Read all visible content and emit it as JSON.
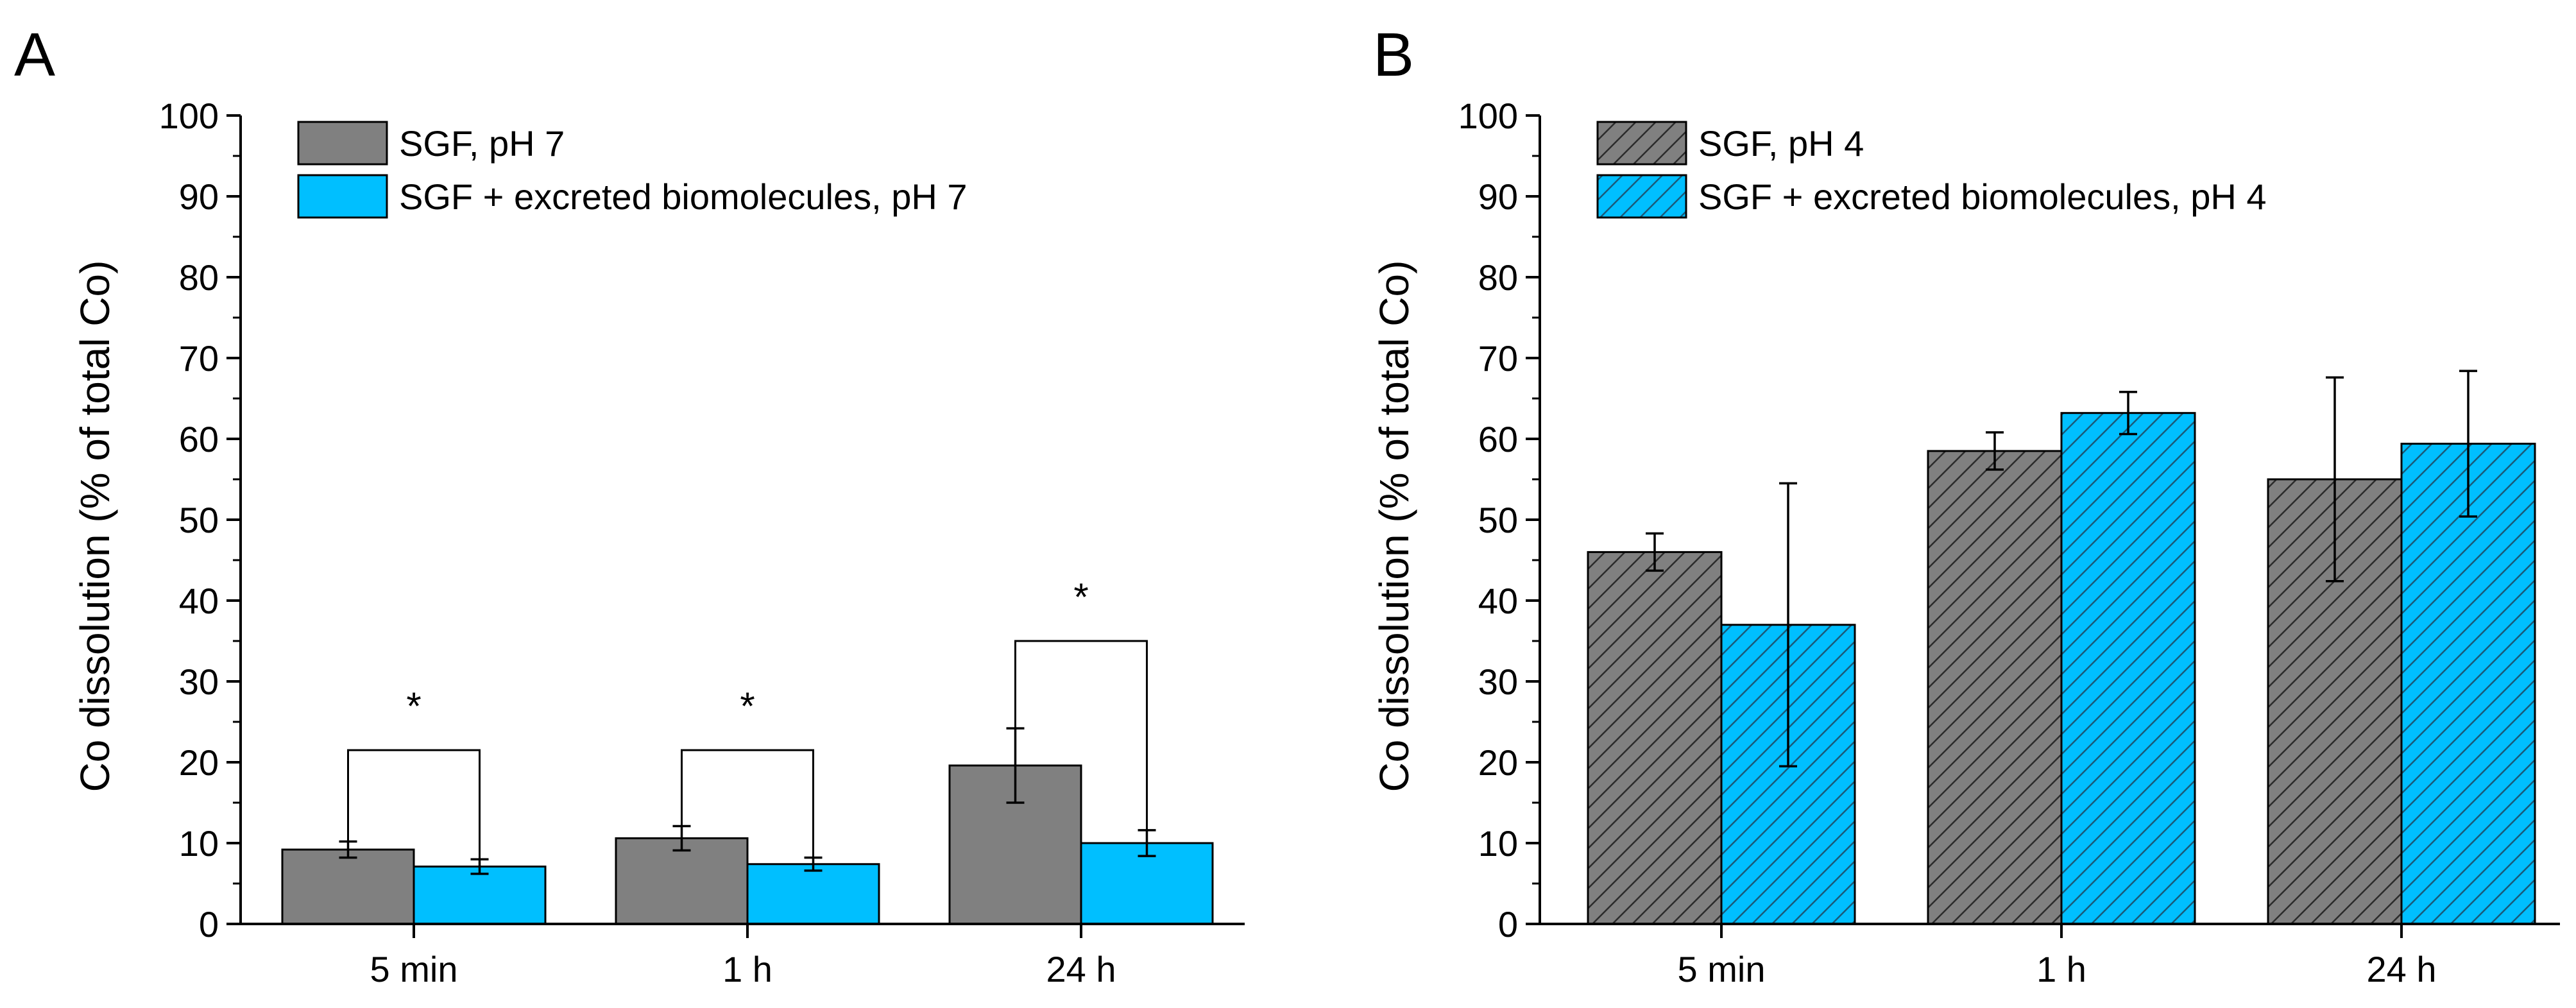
{
  "chart_data": [
    {
      "type": "bar",
      "panel_label": "A",
      "categories": [
        "5 min",
        "1 h",
        "24 h"
      ],
      "series": [
        {
          "name": "SGF, pH 7",
          "values": [
            9.2,
            10.6,
            19.6
          ],
          "errors": [
            1.0,
            1.5,
            4.6
          ],
          "color": "#808080",
          "hatch": false
        },
        {
          "name": "SGF + excreted biomolecules, pH 7",
          "values": [
            7.1,
            7.4,
            10.0
          ],
          "errors": [
            0.9,
            0.8,
            1.6
          ],
          "color": "#00bfff",
          "hatch": false
        }
      ],
      "ylabel": "Co dissolution (% of total Co)",
      "ylim": [
        0,
        100
      ],
      "yticks": [
        0,
        10,
        20,
        30,
        40,
        50,
        60,
        70,
        80,
        90,
        100
      ],
      "yticks_labels": [
        "0",
        "10",
        "20",
        "30",
        "40",
        "50",
        "60",
        "70",
        "80",
        "90",
        "100"
      ],
      "legend": "top-left",
      "significance": [
        {
          "category": "5 min",
          "label": "*",
          "level": 21.5
        },
        {
          "category": "1 h",
          "label": "*",
          "level": 21.5
        },
        {
          "category": "24 h",
          "label": "*",
          "level": 35.0
        }
      ]
    },
    {
      "type": "bar",
      "panel_label": "B",
      "categories": [
        "5 min",
        "1 h",
        "24 h"
      ],
      "series": [
        {
          "name": "SGF, pH 4",
          "values": [
            46.0,
            58.5,
            55.0
          ],
          "errors": [
            2.3,
            2.3,
            12.6
          ],
          "color": "#808080",
          "hatch": true
        },
        {
          "name": "SGF + excreted biomolecules, pH 4",
          "values": [
            37.0,
            63.2,
            59.4
          ],
          "errors": [
            17.5,
            2.6,
            9.0
          ],
          "color": "#00bfff",
          "hatch": true
        }
      ],
      "ylabel": "Co dissolution (% of total Co)",
      "ylim": [
        0,
        100
      ],
      "yticks": [
        0,
        10,
        20,
        30,
        40,
        50,
        60,
        70,
        80,
        90,
        100
      ],
      "yticks_labels": [
        "0",
        "10",
        "20",
        "30",
        "40",
        "50",
        "60",
        "70",
        "80",
        "90",
        "100"
      ],
      "legend": "top-left",
      "significance": []
    }
  ]
}
